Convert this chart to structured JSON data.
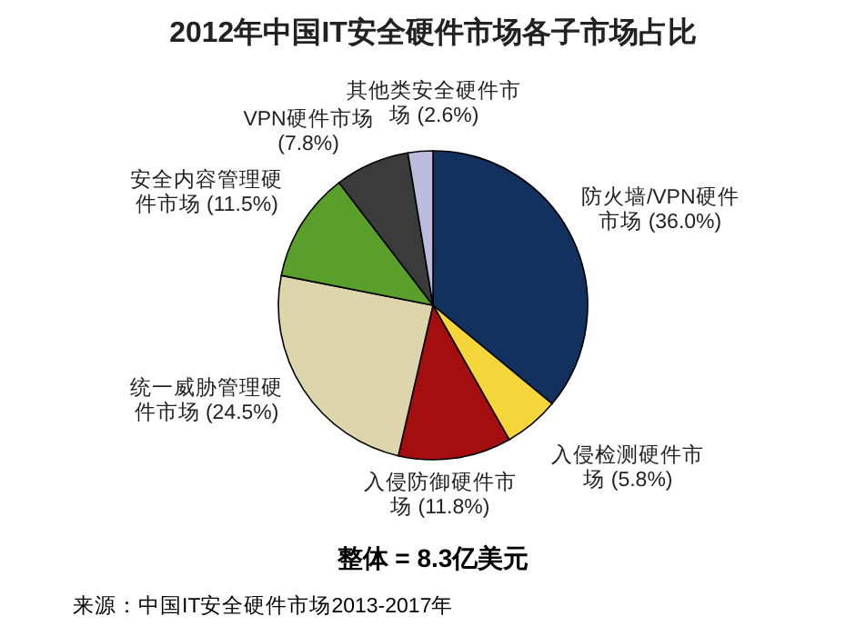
{
  "chart_data": {
    "type": "pie",
    "title": "2012年中国IT安全硬件市场各子市场占比",
    "categories": [
      "防火墙/VPN硬件市场",
      "入侵检测硬件市场",
      "入侵防御硬件市场",
      "统一威胁管理硬件市场",
      "安全内容管理硬件市场",
      "VPN硬件市场",
      "其他类安全硬件市场"
    ],
    "values": [
      36.0,
      5.8,
      11.8,
      24.5,
      11.5,
      7.8,
      2.6
    ],
    "value_labels": [
      "(36.0%)",
      "(5.8%)",
      "(11.8%)",
      "(24.5%)",
      "(11.5%)",
      "(7.8%)",
      "(2.6%)"
    ],
    "colors": [
      "#13315f",
      "#f4d53a",
      "#a50e0e",
      "#ddd6ad",
      "#5a9e2c",
      "#3b3b3b",
      "#bcbbdc"
    ],
    "annotations": [
      "整体 = 8.3亿美元",
      "来源：中国IT安全硬件市场2013-2017年"
    ]
  }
}
